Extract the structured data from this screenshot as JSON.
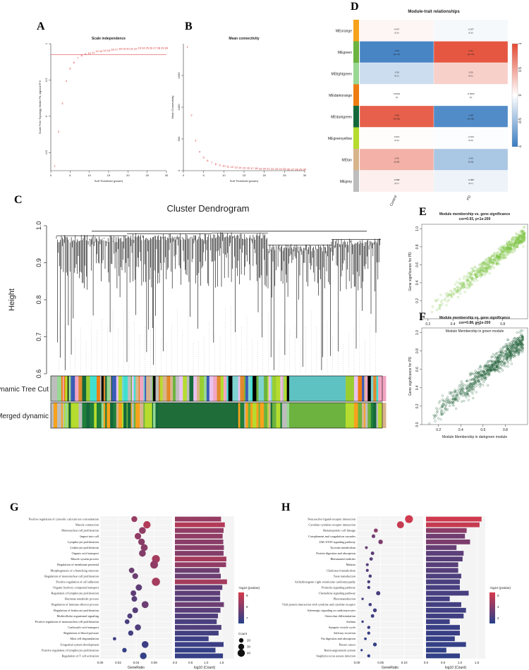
{
  "panel_letters": [
    "A",
    "B",
    "C",
    "D",
    "E",
    "F",
    "G",
    "H"
  ],
  "colors": {
    "red": "#d62728",
    "wgcna_line": "#e05050",
    "heat_neg": "#3a7cc1",
    "heat_pos": "#e34a33",
    "green_scatter": "#7cc342",
    "darkgreen_scatter": "#1e5e36",
    "bar_hi": "#d63a4c",
    "bar_lo": "#27408b"
  },
  "chart_data": [
    {
      "id": "A",
      "type": "scatter",
      "title": "Scale independence",
      "xlabel": "Soft Threshold (power)",
      "ylabel": "Scale Free Topology Model Fit, signed R^2",
      "xlim": [
        0,
        30
      ],
      "ylim": [
        -0.75,
        1.0
      ],
      "xticks": [
        0,
        5,
        10,
        15,
        20,
        25,
        30
      ],
      "yticks": [
        -0.5,
        0.0,
        0.5,
        1.0
      ],
      "cutoff": 0.85,
      "x": [
        1,
        2,
        3,
        4,
        5,
        6,
        7,
        8,
        9,
        10,
        11,
        12,
        13,
        14,
        15,
        16,
        17,
        18,
        19,
        20,
        21,
        22,
        23,
        24,
        25,
        26,
        27,
        28,
        29,
        30
      ],
      "y": [
        -0.68,
        -0.21,
        0.18,
        0.49,
        0.66,
        0.74,
        0.8,
        0.84,
        0.86,
        0.87,
        0.88,
        0.9,
        0.9,
        0.91,
        0.91,
        0.92,
        0.92,
        0.93,
        0.93,
        0.93,
        0.93,
        0.93,
        0.94,
        0.94,
        0.94,
        0.94,
        0.94,
        0.94,
        0.94,
        0.94
      ]
    },
    {
      "id": "B",
      "type": "scatter",
      "title": "Mean connectivity",
      "xlabel": "Soft Threshold (power)",
      "ylabel": "Mean Connectivity",
      "xlim": [
        0,
        30
      ],
      "ylim": [
        0,
        2000
      ],
      "xticks": [
        0,
        5,
        10,
        15,
        20,
        25,
        30
      ],
      "yticks": [
        0,
        500,
        1000,
        1500
      ],
      "x": [
        1,
        2,
        3,
        4,
        5,
        6,
        7,
        8,
        9,
        10,
        11,
        12,
        13,
        14,
        15,
        16,
        17,
        18,
        19,
        20,
        21,
        22,
        23,
        24,
        25,
        26,
        27,
        28,
        29,
        30
      ],
      "y": [
        1950,
        880,
        480,
        300,
        210,
        160,
        130,
        105,
        90,
        78,
        68,
        60,
        54,
        49,
        45,
        42,
        39,
        37,
        35,
        33,
        31,
        30,
        28,
        27,
        26,
        25,
        24,
        23,
        22,
        22
      ]
    },
    {
      "id": "C",
      "type": "dendrogram",
      "title": "Cluster Dendrogram",
      "ylabel": "Height",
      "ylim": [
        0.6,
        1.0
      ],
      "yticks": [
        0.6,
        0.7,
        0.8,
        0.9,
        1.0
      ],
      "row_labels": [
        "Dynamic Tree Cut",
        "Merged dynamic"
      ]
    },
    {
      "id": "D",
      "type": "heatmap",
      "title": "Module-trait relationships",
      "columns": [
        "Control",
        "PD"
      ],
      "rows": [
        {
          "module": "MEorange",
          "color": "#f7a21b",
          "values": [
            0.047,
            -0.047
          ],
          "p": [
            "(0.6)",
            "(0.6)"
          ]
        },
        {
          "module": "MEgreen",
          "color": "#6cb33f",
          "values": [
            -0.93,
            0.93
          ],
          "p": [
            "(3e-73)",
            "(3e-73)"
          ]
        },
        {
          "module": "MElightgreen",
          "color": "#98d894",
          "values": [
            -0.26,
            0.26
          ],
          "p": [
            "(0.1)",
            "(0.1)"
          ]
        },
        {
          "module": "MEdarkorange",
          "color": "#ef7d12",
          "values": [
            0.0024,
            -0.0024
          ],
          "p": [
            "(1)",
            "(1)"
          ]
        },
        {
          "module": "MEdarkgreen",
          "color": "#14693b",
          "values": [
            0.88,
            -0.88
          ],
          "p": [
            "(4e-56)",
            "(4e-56)"
          ]
        },
        {
          "module": "MEgreenyellow",
          "color": "#b5dc2e",
          "values": [
            0.013,
            -0.013
          ],
          "p": [
            "(0.9)",
            "(0.9)"
          ]
        },
        {
          "module": "MEtan",
          "color": "#d8b48c",
          "values": [
            0.43,
            -0.43
          ],
          "p": [
            "(0.03)",
            "(0.03)"
          ]
        },
        {
          "module": "MEgrey",
          "color": "#bdbdbd",
          "values": [
            0.088,
            -0.088
          ],
          "p": [
            "(0.7)",
            "(0.7)"
          ]
        }
      ],
      "legend_ticks": [
        1,
        0.5,
        0,
        -0.5,
        -1
      ]
    },
    {
      "id": "E",
      "type": "scatter",
      "title": "Module membership vs. gene significance",
      "subtitle": "cor=0.93, p<1e-200",
      "xlabel": "Module Membership in green module",
      "ylabel": "Gene significance for PD",
      "xlim": [
        0.15,
        1.0
      ],
      "ylim": [
        0.0,
        1.05
      ],
      "xticks": [
        0.2,
        0.4,
        0.6,
        0.8
      ],
      "yticks": [
        0.2,
        0.4,
        0.6,
        0.8,
        1.0
      ],
      "trend": {
        "slope": 1.1,
        "intercept": -0.15,
        "spread": 0.07,
        "n": 700,
        "x_range": [
          0.22,
          0.98
        ]
      }
    },
    {
      "id": "F",
      "type": "scatter",
      "title": "Module membership vs. gene significance",
      "subtitle": "cor=0.88, p<1e-200",
      "xlabel": "Module Membership in darkgreen module",
      "ylabel": "Gene significance for PD",
      "xlim": [
        0.05,
        1.0
      ],
      "ylim": [
        0.0,
        1.05
      ],
      "xticks": [
        0.2,
        0.4,
        0.6,
        0.8
      ],
      "yticks": [
        0.0,
        0.2,
        0.4,
        0.6,
        0.8,
        1.0
      ],
      "trend": {
        "slope": 1.0,
        "intercept": -0.05,
        "spread": 0.09,
        "n": 800,
        "x_range": [
          0.1,
          0.96
        ]
      }
    },
    {
      "id": "G",
      "type": "dotplot+bar",
      "xlabel_left": "GeneRatio",
      "xlabel_right": "log10 (Count)",
      "xlim_left": [
        0,
        0.08
      ],
      "xticks_left": [
        0.0,
        0.02,
        0.04,
        0.06
      ],
      "xlim_right": [
        0,
        1.9
      ],
      "xticks_right": [
        0.0,
        0.5,
        1.0,
        1.5
      ],
      "legend_title": "-log10 (pvalue)",
      "legend_ticks": [
        9,
        8,
        7
      ],
      "size_title": "Count",
      "size_ticks": [
        20,
        30,
        40
      ],
      "pmin": 7,
      "pmax": 9.5,
      "terms": [
        {
          "label": "Positive regulation of cytosolic calcium ion concentration",
          "ratio": 0.038,
          "logp": 8.6,
          "count": 30,
          "log10count": 1.48
        },
        {
          "label": "Muscle contraction",
          "ratio": 0.052,
          "logp": 9.0,
          "count": 40,
          "log10count": 1.6
        },
        {
          "label": "Mononuclear cell proliferation",
          "ratio": 0.047,
          "logp": 8.5,
          "count": 36,
          "log10count": 1.56
        },
        {
          "label": "Import into cell",
          "ratio": 0.042,
          "logp": 8.5,
          "count": 34,
          "log10count": 1.53
        },
        {
          "label": "Lymphocyte proliferation",
          "ratio": 0.046,
          "logp": 8.4,
          "count": 35,
          "log10count": 1.55
        },
        {
          "label": "Leukocyte proliferation",
          "ratio": 0.049,
          "logp": 8.4,
          "count": 37,
          "log10count": 1.57
        },
        {
          "label": "Organic acid transport",
          "ratio": 0.047,
          "logp": 8.3,
          "count": 36,
          "log10count": 1.56
        },
        {
          "label": "Muscle system process",
          "ratio": 0.062,
          "logp": 8.8,
          "count": 44,
          "log10count": 1.65
        },
        {
          "label": "Regulation of membrane potential",
          "ratio": 0.06,
          "logp": 8.5,
          "count": 43,
          "log10count": 1.64
        },
        {
          "label": "Morphogenesis of a branching structure",
          "ratio": 0.035,
          "logp": 8.0,
          "count": 27,
          "log10count": 1.43
        },
        {
          "label": "Regulation of mononuclear cell proliferation",
          "ratio": 0.039,
          "logp": 8.0,
          "count": 29,
          "log10count": 1.47
        },
        {
          "label": "Positive regulation of cell adhesion",
          "ratio": 0.062,
          "logp": 8.8,
          "count": 46,
          "log10count": 1.67
        },
        {
          "label": "Organic hydroxy compound transport",
          "ratio": 0.043,
          "logp": 7.8,
          "count": 33,
          "log10count": 1.52
        },
        {
          "label": "Regulation of lymphocyte proliferation",
          "ratio": 0.037,
          "logp": 7.8,
          "count": 28,
          "log10count": 1.45
        },
        {
          "label": "Hormone metabolic process",
          "ratio": 0.038,
          "logp": 7.7,
          "count": 28,
          "log10count": 1.45
        },
        {
          "label": "Regulation of immune effector process",
          "ratio": 0.05,
          "logp": 8.0,
          "count": 37,
          "log10count": 1.57
        },
        {
          "label": "Regulation of leukocyte proliferation",
          "ratio": 0.039,
          "logp": 7.7,
          "count": 29,
          "log10count": 1.46
        },
        {
          "label": "Multicellular organismal signaling",
          "ratio": 0.033,
          "logp": 7.6,
          "count": 24,
          "log10count": 1.38
        },
        {
          "label": "Positive regulation of mononuclear cell proliferation",
          "ratio": 0.03,
          "logp": 7.5,
          "count": 22,
          "log10count": 1.34
        },
        {
          "label": "Carboxylic acid transport",
          "ratio": 0.042,
          "logp": 7.6,
          "count": 31,
          "log10count": 1.49
        },
        {
          "label": "Regulation of blood pressure",
          "ratio": 0.034,
          "logp": 7.4,
          "count": 25,
          "log10count": 1.4
        },
        {
          "label": "Mast cell degranulation",
          "ratio": 0.016,
          "logp": 7.3,
          "count": 12,
          "log10count": 1.08
        },
        {
          "label": "Urogenital system development",
          "ratio": 0.05,
          "logp": 7.3,
          "count": 36,
          "log10count": 1.56
        },
        {
          "label": "Positive regulation of lymphocyte proliferation",
          "ratio": 0.027,
          "logp": 7.2,
          "count": 20,
          "log10count": 1.3
        },
        {
          "label": "Regulation of T cell activation",
          "ratio": 0.048,
          "logp": 7.2,
          "count": 35,
          "log10count": 1.54
        }
      ]
    },
    {
      "id": "H",
      "type": "dotplot+bar",
      "xlabel_left": "GeneRatio",
      "xlabel_right": "log10 (Count)",
      "xlim_left": [
        0,
        0.14
      ],
      "xticks_left": [
        0.0,
        0.05,
        0.1
      ],
      "xlim_right": [
        0,
        1.75
      ],
      "xticks_right": [
        0.0,
        0.5,
        1.0,
        1.5
      ],
      "legend_title": "-log10 (pvalue)",
      "legend_ticks": [
        6,
        4,
        2
      ],
      "pmin": 1.5,
      "pmax": 6.5,
      "terms": [
        {
          "label": "Neuroactive ligand-receptor interaction",
          "ratio": 0.11,
          "logp": 6.3,
          "count": 44,
          "log10count": 1.64
        },
        {
          "label": "Cytokine-cytokine receptor interaction",
          "ratio": 0.092,
          "logp": 6.0,
          "count": 38,
          "log10count": 1.58
        },
        {
          "label": "Hematopoietic cell lineage",
          "ratio": 0.04,
          "logp": 4.3,
          "count": 16,
          "log10count": 1.2
        },
        {
          "label": "Complement and coagulation cascades",
          "ratio": 0.035,
          "logp": 3.6,
          "count": 14,
          "log10count": 1.15
        },
        {
          "label": "JAK-STAT signaling pathway",
          "ratio": 0.05,
          "logp": 3.9,
          "count": 20,
          "log10count": 1.3
        },
        {
          "label": "Tyrosine metabolism",
          "ratio": 0.02,
          "logp": 3.3,
          "count": 8,
          "log10count": 0.9
        },
        {
          "label": "Protein digestion and absorption",
          "ratio": 0.033,
          "logp": 3.0,
          "count": 13,
          "log10count": 1.11
        },
        {
          "label": "Rheumatoid arthritis",
          "ratio": 0.03,
          "logp": 2.9,
          "count": 12,
          "log10count": 1.08
        },
        {
          "label": "Malaria",
          "ratio": 0.022,
          "logp": 2.9,
          "count": 9,
          "log10count": 0.95
        },
        {
          "label": "Cholesterol metabolism",
          "ratio": 0.022,
          "logp": 2.8,
          "count": 9,
          "log10count": 0.95
        },
        {
          "label": "Taste transduction",
          "ratio": 0.028,
          "logp": 2.6,
          "count": 11,
          "log10count": 1.04
        },
        {
          "label": "Arrhythmogenic right ventricular cardiomyopathy",
          "ratio": 0.025,
          "logp": 2.5,
          "count": 10,
          "log10count": 1.0
        },
        {
          "label": "Prolactin signaling pathway",
          "ratio": 0.025,
          "logp": 2.4,
          "count": 10,
          "log10count": 1.0
        },
        {
          "label": "Chemokine signaling pathway",
          "ratio": 0.045,
          "logp": 2.4,
          "count": 18,
          "log10count": 1.26
        },
        {
          "label": "Phototransduction",
          "ratio": 0.012,
          "logp": 2.3,
          "count": 5,
          "log10count": 0.7
        },
        {
          "label": "Viral protein interaction with cytokine and cytokine receptor",
          "ratio": 0.028,
          "logp": 2.3,
          "count": 11,
          "log10count": 1.04
        },
        {
          "label": "Adrenergic signaling in cardiomyocytes",
          "ratio": 0.038,
          "logp": 2.2,
          "count": 15,
          "log10count": 1.18
        },
        {
          "label": "Osteoclast differentiation",
          "ratio": 0.033,
          "logp": 2.2,
          "count": 13,
          "log10count": 1.11
        },
        {
          "label": "Asthma",
          "ratio": 0.012,
          "logp": 2.1,
          "count": 5,
          "log10count": 0.7
        },
        {
          "label": "Synaptic vesicle cycle",
          "ratio": 0.025,
          "logp": 2.0,
          "count": 10,
          "log10count": 1.0
        },
        {
          "label": "Salivary secretion",
          "ratio": 0.025,
          "logp": 2.0,
          "count": 10,
          "log10count": 1.0
        },
        {
          "label": "Fat digestion and absorption",
          "ratio": 0.018,
          "logp": 1.9,
          "count": 7,
          "log10count": 0.85
        },
        {
          "label": "Breast cancer",
          "ratio": 0.038,
          "logp": 1.9,
          "count": 15,
          "log10count": 1.18
        },
        {
          "label": "Renin-angiotensin system",
          "ratio": 0.01,
          "logp": 1.8,
          "count": 4,
          "log10count": 0.6
        },
        {
          "label": "Staphylococcus aureus infection",
          "ratio": 0.025,
          "logp": 1.8,
          "count": 10,
          "log10count": 1.0
        }
      ]
    }
  ]
}
